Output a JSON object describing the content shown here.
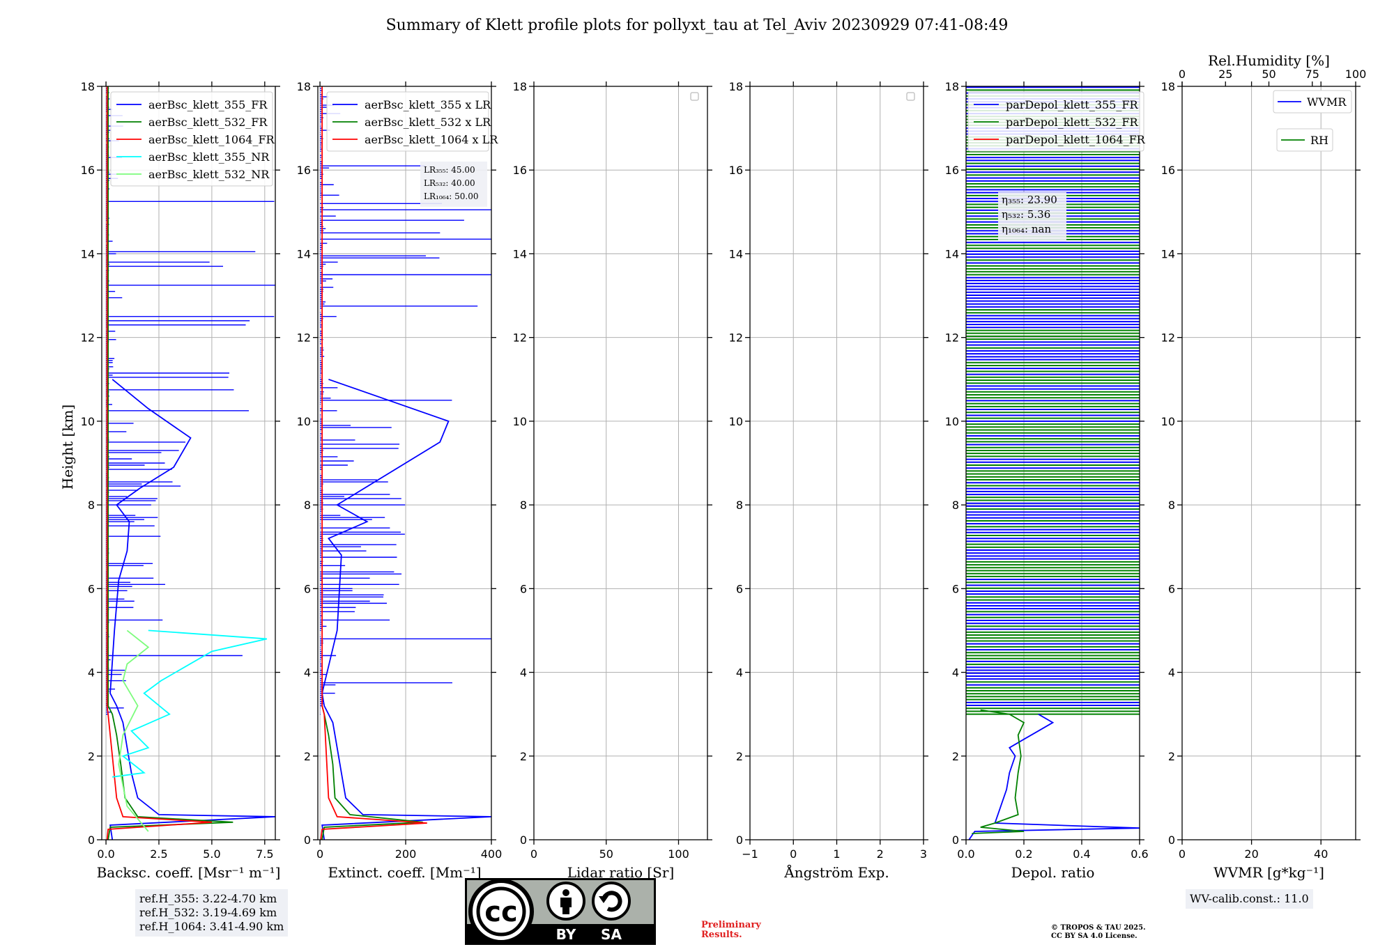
{
  "title": "Summary of Klett profile plots for pollyxt_tau at Tel_Aviv 20230929 07:41-08:49",
  "ylabel": "Height [km]",
  "y_ticks": [
    "0",
    "2",
    "4",
    "6",
    "8",
    "10",
    "12",
    "14",
    "16",
    "18"
  ],
  "refH": [
    "ref.H_355: 3.22-4.70 km",
    "ref.H_532: 3.19-4.69 km",
    "ref.H_1064: 3.41-4.90 km"
  ],
  "wv_calib": "WV-calib.const.: 11.0",
  "preliminary": [
    "Preliminary",
    "Results."
  ],
  "copyright": [
    "© TROPOS & TAU 2025.",
    "CC BY SA 4.0 License."
  ],
  "cc_badge": {
    "main": "cc",
    "by": "BY",
    "sa": "SA"
  },
  "colors": {
    "c355": "#0000ff",
    "c532": "#008000",
    "c1064": "#ff0000",
    "cyan": "#00ffff",
    "lightgreen": "#7cfc7c",
    "annot_bg": "#eef0f5"
  },
  "chart_data": [
    {
      "type": "line",
      "xlabel": "Backsc. coeff. [Msr⁻¹ m⁻¹]",
      "xlim": [
        -0.2,
        8.0
      ],
      "ylim": [
        0,
        18
      ],
      "x_ticks": [
        "0.0",
        "2.5",
        "5.0",
        "7.5"
      ],
      "x_tick_values": [
        0,
        2.5,
        5.0,
        7.5
      ],
      "grid": true,
      "legend": "top-right",
      "series": [
        {
          "name": "aerBsc_klett_355_FR",
          "color": "#0000ff",
          "x": [
            0.3,
            0.2,
            8.0,
            2.5,
            1.5,
            1.2,
            1.0,
            0.8,
            0.5,
            0.2,
            0.4,
            0.6,
            1.0,
            1.1,
            0.5,
            1.6,
            3.2,
            4.0,
            2.0,
            0.3
          ],
          "y": [
            0,
            0.35,
            0.55,
            0.6,
            1.0,
            1.6,
            2.2,
            2.8,
            3.2,
            3.5,
            5.0,
            6.2,
            6.9,
            7.6,
            8.0,
            8.4,
            8.9,
            9.6,
            10.3,
            11.0
          ]
        },
        {
          "name": "aerBsc_klett_532_FR",
          "color": "#008000",
          "x": [
            0.1,
            0.2,
            6.0,
            1.5,
            0.9,
            0.7,
            0.5,
            0.3,
            0.1,
            0.1
          ],
          "y": [
            0,
            0.3,
            0.42,
            0.55,
            1.0,
            1.8,
            2.5,
            3.0,
            3.2,
            18
          ]
        },
        {
          "name": "aerBsc_klett_1064_FR",
          "color": "#ff0000",
          "x": [
            0.05,
            0.1,
            5.0,
            0.8,
            0.5,
            0.3,
            0.1,
            0.05,
            0.05
          ],
          "y": [
            0,
            0.25,
            0.42,
            0.55,
            1.0,
            2.0,
            3.0,
            3.2,
            18
          ]
        },
        {
          "name": "aerBsc_klett_355_NR",
          "color": "#00ffff",
          "x": [
            0.3,
            1.8,
            0.8,
            2.0,
            1.2,
            3.0,
            1.8,
            2.6,
            5.0,
            7.6,
            2.0
          ],
          "y": [
            1.5,
            1.6,
            2.0,
            2.2,
            2.6,
            3.0,
            3.5,
            3.8,
            4.5,
            4.8,
            5.0
          ]
        },
        {
          "name": "aerBsc_klett_532_NR",
          "color": "#7cfc7c",
          "x": [
            2.0,
            1.0,
            0.6,
            0.8,
            1.5,
            0.8,
            1.0,
            2.0,
            1.0
          ],
          "y": [
            0.2,
            0.8,
            1.8,
            2.5,
            3.2,
            3.8,
            4.2,
            4.6,
            5.0
          ]
        }
      ]
    },
    {
      "type": "line",
      "xlabel": "Extinct. coeff. [Mm⁻¹]",
      "xlim": [
        -5,
        400
      ],
      "ylim": [
        0,
        18
      ],
      "x_ticks": [
        "0",
        "200",
        "400"
      ],
      "x_tick_values": [
        0,
        200,
        400
      ],
      "grid": true,
      "legend": "top-right",
      "annotations": [
        "LR₃₅₅: 45.00",
        "LR₅₃₂: 40.00",
        "LR₁₀₆₄: 50.00"
      ],
      "series": [
        {
          "name": "aerBsc_klett_355 x LR",
          "color": "#0000ff",
          "x": [
            10,
            5,
            400,
            100,
            60,
            50,
            40,
            30,
            10,
            5,
            40,
            50,
            20,
            110,
            40,
            280,
            300,
            20
          ],
          "y": [
            0,
            0.35,
            0.55,
            0.6,
            1.0,
            1.6,
            2.2,
            2.8,
            3.2,
            3.5,
            5.0,
            6.8,
            7.2,
            7.6,
            8.0,
            9.5,
            10.0,
            11.0
          ]
        },
        {
          "name": "aerBsc_klett_532 x LR",
          "color": "#008000",
          "x": [
            5,
            10,
            240,
            70,
            35,
            30,
            20,
            10,
            5
          ],
          "y": [
            0,
            0.3,
            0.42,
            0.6,
            1.0,
            1.8,
            2.5,
            3.0,
            3.2
          ]
        },
        {
          "name": "aerBsc_klett_1064 x LR",
          "color": "#ff0000",
          "x": [
            2,
            5,
            250,
            40,
            20,
            15,
            10,
            5,
            5
          ],
          "y": [
            0,
            0.25,
            0.4,
            0.55,
            1.0,
            2.0,
            3.0,
            3.2,
            18
          ]
        }
      ]
    },
    {
      "type": "line",
      "xlabel": "Lidar ratio [Sr]",
      "xlim": [
        0,
        120
      ],
      "ylim": [
        0,
        18
      ],
      "x_ticks": [
        "0",
        "50",
        "100"
      ],
      "x_tick_values": [
        0,
        50,
        100
      ],
      "grid": true,
      "legend": "top-right",
      "series": []
    },
    {
      "type": "line",
      "xlabel": "Ångström Exp.",
      "xlim": [
        -1,
        3
      ],
      "ylim": [
        0,
        18
      ],
      "x_ticks": [
        "−1",
        "0",
        "1",
        "2",
        "3"
      ],
      "x_tick_values": [
        -1,
        0,
        1,
        2,
        3
      ],
      "grid": true,
      "legend": "top-right",
      "series": []
    },
    {
      "type": "line",
      "xlabel": "Depol. ratio",
      "xlim": [
        0,
        0.6
      ],
      "ylim": [
        0,
        18
      ],
      "x_ticks": [
        "0.0",
        "0.2",
        "0.4",
        "0.6"
      ],
      "x_tick_values": [
        0,
        0.2,
        0.4,
        0.6
      ],
      "grid": true,
      "legend": "top-left",
      "annotations": [
        "η₃₅₅: 23.90",
        "η₅₃₂: 5.36",
        "η₁₀₆₄: nan"
      ],
      "series": [
        {
          "name": "parDepol_klett_355_FR",
          "color": "#0000ff",
          "x": [
            0.01,
            0.03,
            0.6,
            0.1,
            0.12,
            0.14,
            0.15,
            0.17,
            0.15,
            0.2,
            0.25,
            0.3,
            0.25
          ],
          "y": [
            0,
            0.2,
            0.28,
            0.4,
            0.8,
            1.2,
            1.6,
            2.0,
            2.2,
            2.4,
            2.6,
            2.8,
            3.0
          ]
        },
        {
          "name": "parDepol_klett_532_FR",
          "color": "#008000",
          "x": [
            0.02,
            0.2,
            0.05,
            0.1,
            0.18,
            0.17,
            0.18,
            0.19,
            0.18,
            0.2,
            0.15,
            0.05
          ],
          "y": [
            0.15,
            0.2,
            0.3,
            0.4,
            0.6,
            1.0,
            1.6,
            2.0,
            2.5,
            2.8,
            3.0,
            3.1
          ]
        },
        {
          "name": "parDepol_klett_1064_FR",
          "color": "#ff0000",
          "x": [],
          "y": []
        }
      ]
    },
    {
      "type": "line",
      "xlabel": "WVMR [g*kg⁻¹]",
      "x2label": "Rel.Humidity [%]",
      "xlim": [
        0,
        50
      ],
      "ylim": [
        0,
        18
      ],
      "x_ticks": [
        "0",
        "20",
        "40"
      ],
      "x_tick_values": [
        0,
        20,
        40
      ],
      "x2_ticks": [
        "0",
        "25",
        "50",
        "75",
        "100"
      ],
      "x2_tick_values": [
        0,
        25,
        50,
        75,
        100
      ],
      "grid": true,
      "legend": "top-right",
      "series": [
        {
          "name": "WVMR",
          "color": "#0000ff",
          "x": [],
          "y": []
        },
        {
          "name": "RH",
          "color": "#008000",
          "x": [],
          "y": []
        }
      ]
    }
  ]
}
